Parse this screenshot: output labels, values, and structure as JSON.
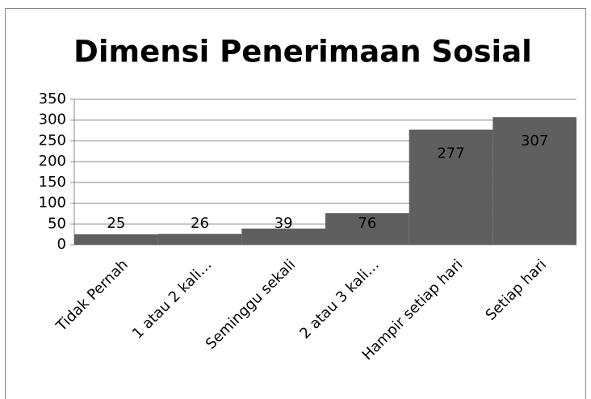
{
  "chart_data": {
    "type": "bar",
    "title": "Dimensi Penerimaan Sosial",
    "categories": [
      "Tidak Pernah",
      "1 atau 2 kali…",
      "Seminggu sekali",
      "2 atau 3 kali…",
      "Hampir setiap hari",
      "Setiap hari"
    ],
    "values": [
      25,
      26,
      39,
      76,
      277,
      307
    ],
    "color": "#5f5f5f",
    "ylim": [
      0,
      350
    ],
    "yticks": [
      0,
      50,
      100,
      150,
      200,
      250,
      300,
      350
    ],
    "grid": true
  }
}
